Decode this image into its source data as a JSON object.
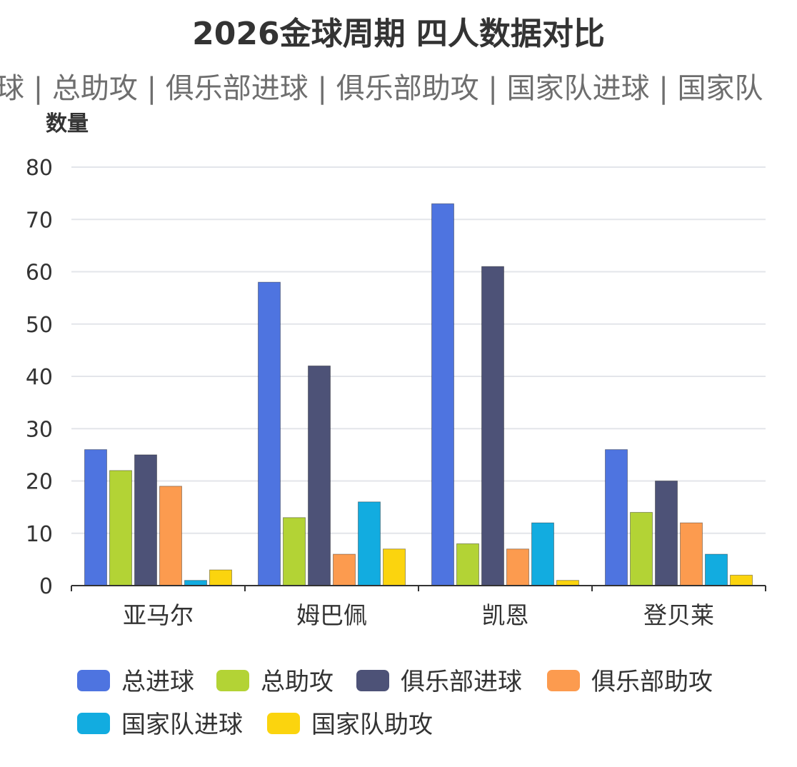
{
  "chart_data": {
    "type": "bar",
    "title": "2026金球周期 四人数据对比",
    "subtitle_items": [
      "总进球",
      "总助攻",
      "俱乐部进球",
      "俱乐部助攻",
      "国家队进球",
      "国家队助攻"
    ],
    "subtitle_visible": "球 | 总助攻 | 俱乐部进球 | 俱乐部助攻 | 国家队进球 | 国家队",
    "ylabel": "数量",
    "xlabel": "",
    "ylim": [
      0,
      80
    ],
    "yticks": [
      0,
      10,
      20,
      30,
      40,
      50,
      60,
      70,
      80
    ],
    "grid": true,
    "legend_position": "bottom",
    "categories": [
      "亚马尔",
      "姆巴佩",
      "凯恩",
      "登贝莱"
    ],
    "series": [
      {
        "name": "总进球",
        "color": "#4e74e0",
        "values": [
          26,
          58,
          73,
          26
        ]
      },
      {
        "name": "总助攻",
        "color": "#b3d335",
        "values": [
          22,
          13,
          8,
          14
        ]
      },
      {
        "name": "俱乐部进球",
        "color": "#4d5277",
        "values": [
          25,
          42,
          61,
          20
        ]
      },
      {
        "name": "俱乐部助攻",
        "color": "#fc9b4f",
        "values": [
          19,
          6,
          7,
          12
        ]
      },
      {
        "name": "国家队进球",
        "color": "#12ace0",
        "values": [
          1,
          16,
          12,
          6
        ]
      },
      {
        "name": "国家队助攻",
        "color": "#fbd40e",
        "values": [
          3,
          7,
          1,
          2
        ]
      }
    ]
  }
}
